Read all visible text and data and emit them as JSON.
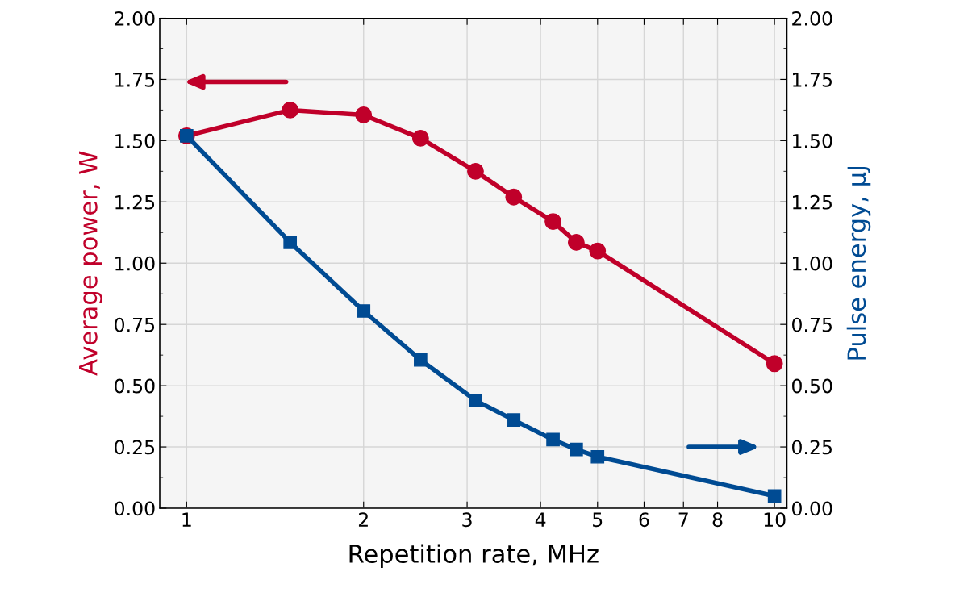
{
  "chart_data": {
    "type": "line",
    "xlabel": "Repetition rate, MHz",
    "ylabel": "Average power, W",
    "y2label": "Pulse energy, µJ",
    "log": "x",
    "grid": true,
    "legend": false,
    "xlim": [
      0.9,
      10.5
    ],
    "xticks": [
      1,
      2,
      3,
      4,
      5,
      6,
      7,
      8,
      10
    ],
    "ylim": [
      0,
      2
    ],
    "yticks": [
      {
        "value": 0,
        "label": "0.00"
      },
      {
        "value": 0.25,
        "label": "0.25"
      },
      {
        "value": 0.5,
        "label": "0.50"
      },
      {
        "value": 0.75,
        "label": "0.75"
      },
      {
        "value": 1,
        "label": "1.00"
      },
      {
        "value": 1.25,
        "label": "1.25"
      },
      {
        "value": 1.5,
        "label": "1.50"
      },
      {
        "value": 1.75,
        "label": "1.75"
      },
      {
        "value": 2,
        "label": "2.00"
      }
    ],
    "y2lim": [
      0,
      2
    ],
    "y2ticks": [
      {
        "value": 0,
        "label": "0.00"
      },
      {
        "value": 0.25,
        "label": "0.25"
      },
      {
        "value": 0.5,
        "label": "0.50"
      },
      {
        "value": 0.75,
        "label": "0.75"
      },
      {
        "value": 1,
        "label": "1.00"
      },
      {
        "value": 1.25,
        "label": "1.25"
      },
      {
        "value": 1.5,
        "label": "1.50"
      },
      {
        "value": 1.75,
        "label": "1.75"
      },
      {
        "value": 2,
        "label": "2.00"
      }
    ],
    "x": [
      1,
      1.5,
      2,
      2.5,
      3.1,
      3.6,
      4.2,
      4.6,
      5,
      10
    ],
    "series": [
      {
        "color": "#c0002a",
        "marker": "circle",
        "line_style": "solid",
        "values": [
          1.52,
          1.625,
          1.605,
          1.51,
          1.375,
          1.27,
          1.17,
          1.085,
          1.05,
          0.59
        ]
      },
      {
        "color": "#004b93",
        "marker": "square",
        "line_style": "solid",
        "axis": "y2",
        "values": [
          1.52,
          1.085,
          0.805,
          0.605,
          0.44,
          0.36,
          0.28,
          0.24,
          0.21,
          0.05
        ]
      }
    ]
  }
}
